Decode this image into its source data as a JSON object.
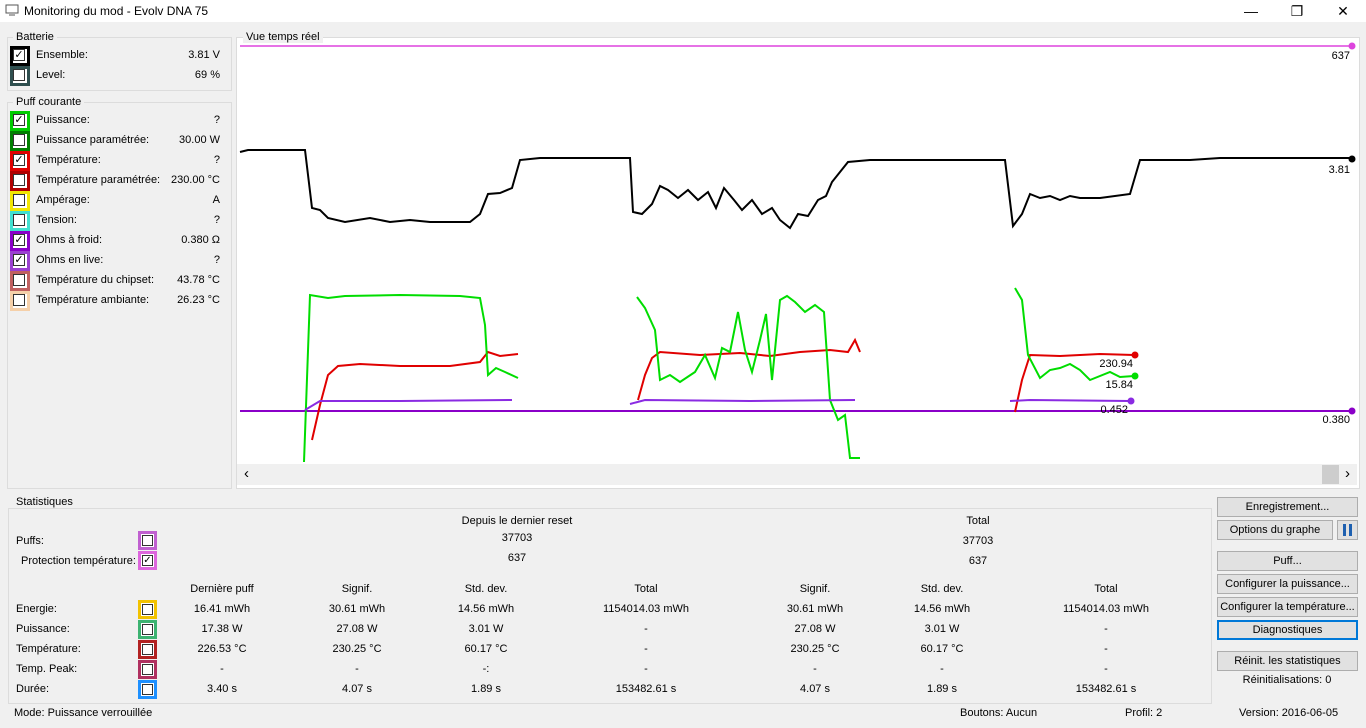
{
  "window": {
    "title": "Monitoring du mod - Evolv DNA 75",
    "minimize": "—",
    "maximize": "❐",
    "close": "✕"
  },
  "battery": {
    "title": "Batterie",
    "items": [
      {
        "label": "Ensemble:",
        "value": "3.81 V",
        "color": "#000000",
        "checked": true
      },
      {
        "label": "Level:",
        "value": "69 %",
        "color": "#2f4f4f",
        "checked": false
      }
    ]
  },
  "puff": {
    "title": "Puff courante",
    "items": [
      {
        "label": "Puissance:",
        "value": "?",
        "color": "#00cc00",
        "checked": true
      },
      {
        "label": "Puissance paramétrée:",
        "value": "30.00 W",
        "color": "#008000",
        "checked": false
      },
      {
        "label": "Température:",
        "value": "?",
        "color": "#e00000",
        "checked": true
      },
      {
        "label": "Température paramétrée:",
        "value": "230.00 °C",
        "color": "#b00000",
        "checked": false
      },
      {
        "label": "Ampérage:",
        "value": "A",
        "color": "#f2e600",
        "checked": false
      },
      {
        "label": "Tension:",
        "value": "?",
        "color": "#40e0d0",
        "checked": false
      },
      {
        "label": "Ohms à froid:",
        "value": "0.380 Ω",
        "color": "#8a00c8",
        "checked": true
      },
      {
        "label": "Ohms en live:",
        "value": "?",
        "color": "#9a40d0",
        "checked": true
      },
      {
        "label": "Température du chipset:",
        "value": "43.78 °C",
        "color": "#c06060",
        "checked": false
      },
      {
        "label": "Température ambiante:",
        "value": "26.23 °C",
        "color": "#f5d0a9",
        "checked": false
      }
    ]
  },
  "chart": {
    "title": "Vue temps réel",
    "labels": {
      "top": "637",
      "battery": "3.81",
      "temp": "230.94",
      "power": "15.84",
      "ohms_live": "0.452",
      "ohms_cold": "0.380"
    },
    "scroll_left": "‹",
    "scroll_right": "›"
  },
  "chart_data": {
    "type": "line",
    "series": [
      {
        "name": "Ensemble",
        "color": "#000000",
        "last": 3.81
      },
      {
        "name": "Température",
        "color": "#e00000",
        "last": 230.94
      },
      {
        "name": "Puissance",
        "color": "#00dd00",
        "last": 15.84
      },
      {
        "name": "Ohms en live",
        "color": "#8a2be2",
        "last": 0.452
      },
      {
        "name": "Ohms à froid",
        "color": "#8a00c8",
        "last": 0.38
      },
      {
        "name": "Protection température",
        "color": "#dd44dd",
        "last": 637
      }
    ]
  },
  "stats": {
    "title": "Statistiques",
    "since_reset": "Depuis le dernier reset",
    "total": "Total",
    "puffs_label": "Puffs:",
    "puffs_since": "37703",
    "puffs_total": "37703",
    "protect_label": "Protection température:",
    "protect_since": "637",
    "protect_total": "637",
    "headers": [
      "Dernière puff",
      "Signif.",
      "Std. dev.",
      "Total",
      "Signif.",
      "Std. dev.",
      "Total"
    ],
    "rows": [
      {
        "label": "Energie:",
        "color": "#f2c200",
        "values": [
          "16.41 mWh",
          "30.61 mWh",
          "14.56 mWh",
          "1154014.03 mWh",
          "30.61 mWh",
          "14.56 mWh",
          "1154014.03 mWh"
        ]
      },
      {
        "label": "Puissance:",
        "color": "#3cb371",
        "values": [
          "17.38 W",
          "27.08 W",
          "3.01 W",
          "-",
          "27.08 W",
          "3.01 W",
          "-"
        ]
      },
      {
        "label": "Température:",
        "color": "#b22222",
        "values": [
          "226.53 °C",
          "230.25 °C",
          "60.17 °C",
          "-",
          "230.25 °C",
          "60.17 °C",
          "-"
        ]
      },
      {
        "label": "Temp. Peak:",
        "color": "#b03060",
        "values": [
          "-",
          "-",
          "-:",
          "-",
          "-",
          "-",
          "-"
        ]
      },
      {
        "label": "Durée:",
        "color": "#1e90ff",
        "values": [
          "3.40 s",
          "4.07 s",
          "1.89 s",
          "153482.61 s",
          "4.07 s",
          "1.89 s",
          "153482.61 s"
        ]
      }
    ]
  },
  "buttons": {
    "record": "Enregistrement...",
    "graph_options": "Options du graphe",
    "puff": "Puff...",
    "config_power": "Configurer la puissance...",
    "config_temp": "Configurer la température...",
    "diagnostics": "Diagnostiques",
    "reset_stats": "Réinit. les statistiques",
    "resets": "Réinitialisations: 0"
  },
  "status": {
    "mode": "Mode: Puissance verrouillée",
    "buttons": "Boutons: Aucun",
    "profile": "Profil: 2",
    "version": "Version: 2016-06-05"
  }
}
